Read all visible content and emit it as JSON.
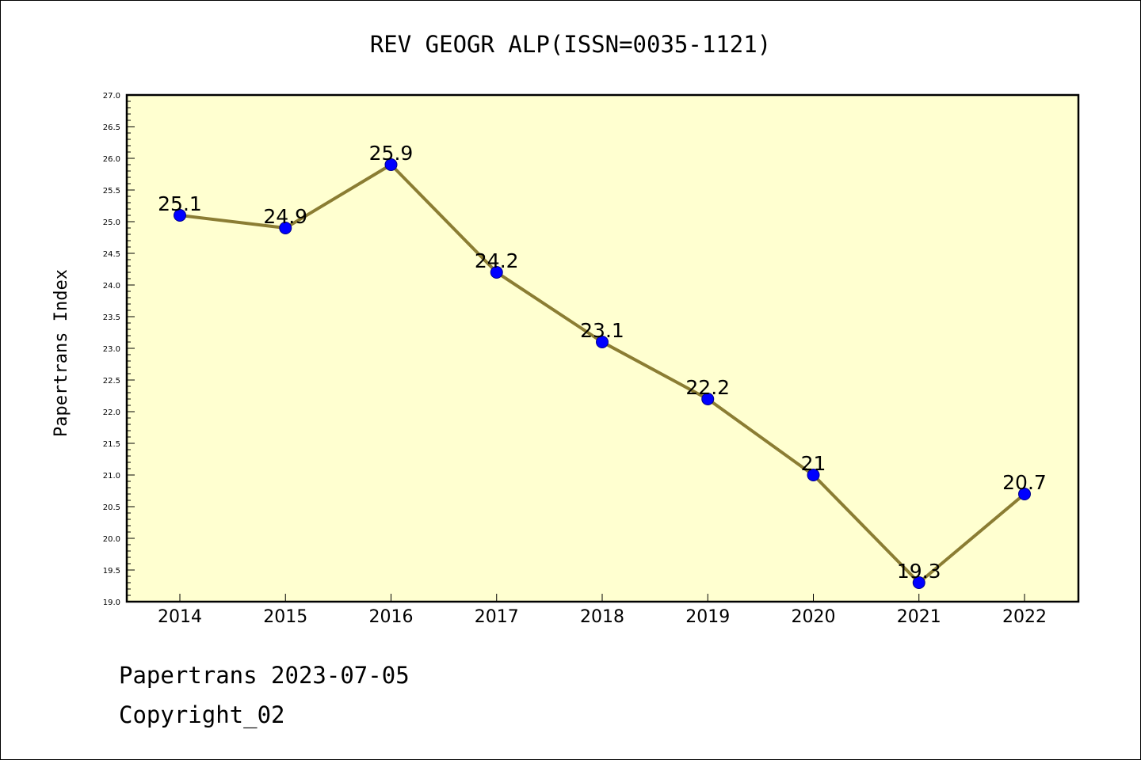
{
  "chart_data": {
    "type": "line",
    "title": "REV GEOGR ALP(ISSN=0035-1121)",
    "xlabel": "",
    "ylabel": "Papertrans Index",
    "categories": [
      "2014",
      "2015",
      "2016",
      "2017",
      "2018",
      "2019",
      "2020",
      "2021",
      "2022"
    ],
    "values": [
      25.1,
      24.9,
      25.9,
      24.2,
      23.1,
      22.2,
      21.0,
      19.3,
      20.7
    ],
    "data_labels": [
      "25.1",
      "24.9",
      "25.9",
      "24.2",
      "23.1",
      "22.2",
      "21",
      "19.3",
      "20.7"
    ],
    "ylim": [
      19.0,
      27.0
    ],
    "yticks": [
      "19.0",
      "19.5",
      "20.0",
      "20.5",
      "21.0",
      "21.5",
      "22.0",
      "22.5",
      "23.0",
      "23.5",
      "24.0",
      "24.5",
      "25.0",
      "25.5",
      "26.0",
      "26.5",
      "27.0"
    ],
    "grid": false,
    "legend": "none",
    "colors": {
      "plot_background": "#ffffd0",
      "line": "#8b7d33",
      "marker": "#0000ff",
      "marker_edge": "#00008b"
    }
  },
  "footer": {
    "line1": "Papertrans 2023-07-05",
    "line2": "Copyright_02"
  }
}
